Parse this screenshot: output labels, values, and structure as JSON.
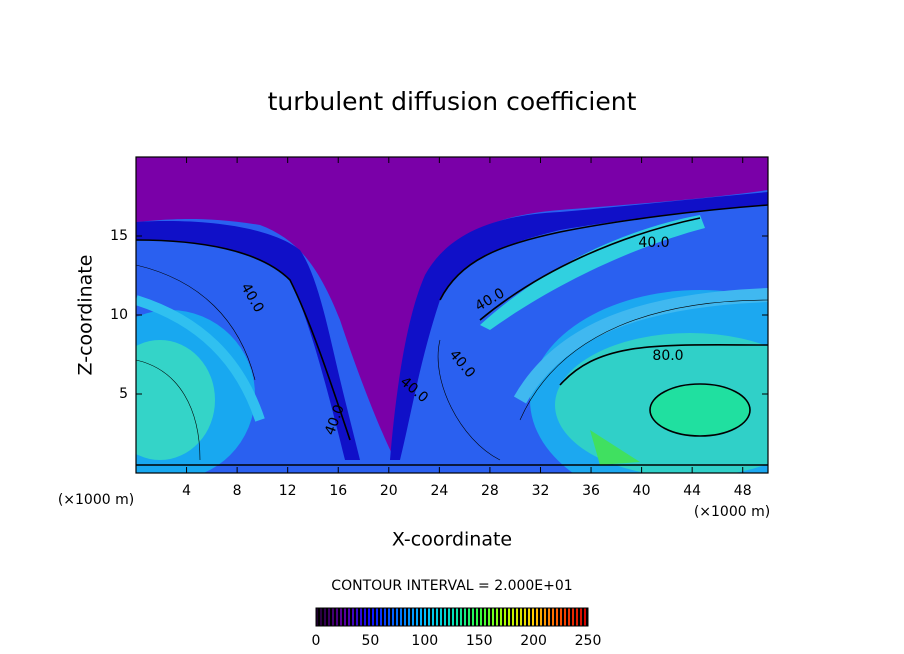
{
  "chart_data": {
    "type": "contour",
    "title": "turbulent diffusion coefficient",
    "xlabel": "X-coordinate",
    "ylabel": "Z-coordinate",
    "x_unit": "(×1000 m)",
    "y_unit": "(×1000 m)",
    "xlim": [
      0,
      50
    ],
    "ylim": [
      0,
      20
    ],
    "xticks": [
      4,
      8,
      12,
      16,
      20,
      24,
      28,
      32,
      36,
      40,
      44,
      48
    ],
    "yticks": [
      5,
      10,
      15
    ],
    "contour_labels": [
      "40.0",
      "40.0",
      "40.0",
      "40.0",
      "40.0",
      "40.0",
      "80.0"
    ],
    "contour_interval": "CONTOUR INTERVAL = 2.000E+01",
    "colorlim": [
      0,
      250
    ],
    "colorticks": [
      0,
      50,
      100,
      150,
      200,
      250
    ],
    "colormap": [
      "#200030",
      "#5a00a0",
      "#1010ff",
      "#0070ff",
      "#00c0ff",
      "#00e0c0",
      "#30ff40",
      "#b0ff00",
      "#ffd000",
      "#ff5000",
      "#d00000"
    ]
  }
}
